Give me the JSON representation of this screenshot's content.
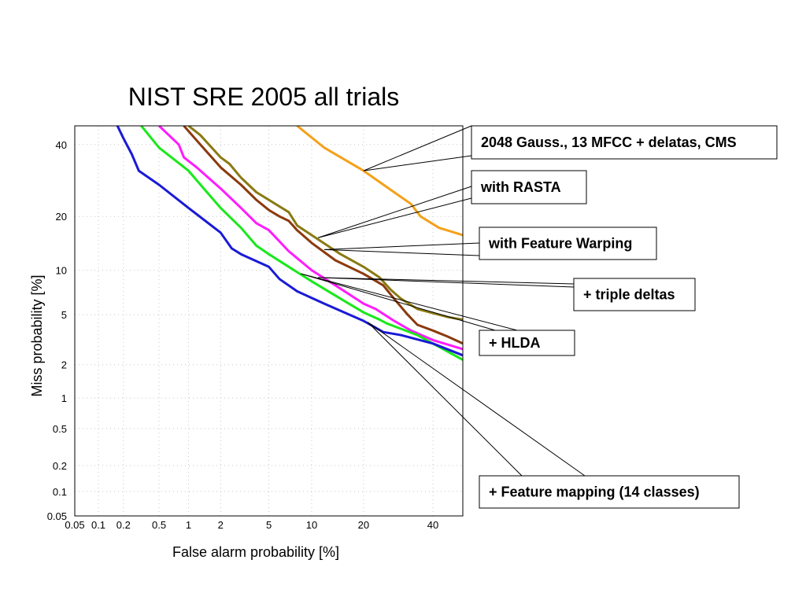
{
  "chart_data": {
    "type": "line",
    "title": "NIST SRE 2005 all trials",
    "xlabel": "False alarm probability [%]",
    "ylabel": "Miss probability [%]",
    "xscale": "probit",
    "yscale": "probit",
    "xlim": [
      0.05,
      50
    ],
    "ylim": [
      0.05,
      46
    ],
    "grid": true,
    "x_ticks": [
      0.05,
      0.1,
      0.2,
      0.5,
      1,
      2,
      5,
      10,
      20,
      40
    ],
    "x_tick_labels": [
      "0.05",
      "0.1",
      "0.2",
      "0.5",
      "1",
      "2",
      "5",
      "10",
      "20",
      "40"
    ],
    "y_ticks": [
      0.05,
      0.1,
      0.2,
      0.5,
      1,
      2,
      5,
      10,
      20,
      40
    ],
    "y_tick_labels": [
      "0.05",
      "0.1",
      "0.2",
      "0.5",
      "1",
      "2",
      "5",
      "10",
      "20",
      "40"
    ],
    "series": [
      {
        "name": "2048 Gauss., 13 MFCC + delatas, CMS",
        "color": "#f5a01a",
        "points": [
          [
            8,
            46
          ],
          [
            12,
            39
          ],
          [
            20,
            32
          ],
          [
            28,
            26
          ],
          [
            33,
            23
          ],
          [
            36,
            20
          ],
          [
            42,
            17.5
          ],
          [
            50,
            16
          ]
        ]
      },
      {
        "name": "with RASTA",
        "color": "#8a7a12",
        "points": [
          [
            1,
            46
          ],
          [
            1.3,
            43
          ],
          [
            2,
            36
          ],
          [
            2.4,
            34
          ],
          [
            3,
            30
          ],
          [
            4,
            26
          ],
          [
            5,
            24
          ],
          [
            7,
            21
          ],
          [
            8,
            18
          ],
          [
            10,
            16
          ],
          [
            15,
            12.5
          ],
          [
            20,
            10.5
          ],
          [
            24,
            9
          ],
          [
            27,
            7.5
          ],
          [
            30,
            6.5
          ],
          [
            35,
            5.5
          ],
          [
            45,
            4.8
          ],
          [
            50,
            4.6
          ]
        ]
      },
      {
        "name": "with Feature Warping",
        "color": "#8b3a0e",
        "points": [
          [
            0.9,
            46
          ],
          [
            1.3,
            40
          ],
          [
            2,
            33
          ],
          [
            3,
            28
          ],
          [
            4,
            24
          ],
          [
            5,
            21.5
          ],
          [
            6,
            20
          ],
          [
            7,
            19
          ],
          [
            8,
            17
          ],
          [
            10,
            14.5
          ],
          [
            14,
            11.5
          ],
          [
            20,
            9.5
          ],
          [
            25,
            8
          ],
          [
            28,
            6.5
          ],
          [
            32,
            5
          ],
          [
            35,
            4.2
          ],
          [
            40,
            3.8
          ],
          [
            45,
            3.4
          ],
          [
            50,
            3
          ]
        ]
      },
      {
        "name": "+ triple deltas",
        "color": "#ff1cff",
        "points": [
          [
            0.5,
            46
          ],
          [
            0.8,
            40
          ],
          [
            0.9,
            36
          ],
          [
            1.2,
            33
          ],
          [
            2,
            27
          ],
          [
            3,
            22
          ],
          [
            4,
            18.5
          ],
          [
            5,
            17
          ],
          [
            7,
            13
          ],
          [
            10,
            10
          ],
          [
            14,
            8
          ],
          [
            20,
            6
          ],
          [
            23,
            5.5
          ],
          [
            28,
            4.5
          ],
          [
            33,
            3.8
          ],
          [
            40,
            3.2
          ],
          [
            50,
            2.7
          ]
        ]
      },
      {
        "name": "+ HLDA",
        "color": "#1ae81a",
        "points": [
          [
            0.32,
            46
          ],
          [
            0.5,
            39
          ],
          [
            1,
            32
          ],
          [
            1.5,
            26
          ],
          [
            2,
            22
          ],
          [
            3,
            17.5
          ],
          [
            4,
            14
          ],
          [
            5,
            12.5
          ],
          [
            7,
            10.5
          ],
          [
            10,
            8.5
          ],
          [
            15,
            6.5
          ],
          [
            20,
            5.2
          ],
          [
            24,
            4.6
          ],
          [
            26,
            4.3
          ],
          [
            35,
            3.5
          ],
          [
            50,
            2.2
          ]
        ]
      },
      {
        "name": "+ Feature mapping (14 classes)",
        "color": "#1a1ad6",
        "points": [
          [
            0.17,
            46
          ],
          [
            0.2,
            42
          ],
          [
            0.25,
            37
          ],
          [
            0.3,
            32
          ],
          [
            0.5,
            28
          ],
          [
            1,
            22
          ],
          [
            2,
            16.5
          ],
          [
            2.5,
            13.5
          ],
          [
            3,
            12.5
          ],
          [
            5,
            10.5
          ],
          [
            6,
            8.8
          ],
          [
            8,
            7.3
          ],
          [
            12,
            6
          ],
          [
            20,
            4.5
          ],
          [
            25,
            3.7
          ],
          [
            30,
            3.5
          ],
          [
            40,
            3
          ],
          [
            50,
            2.4
          ]
        ]
      }
    ],
    "annotations": [
      {
        "label": "2048 Gauss., 13 MFCC + delatas, CMS",
        "series": 0,
        "x": 20,
        "y": 32
      },
      {
        "label": "with RASTA",
        "series": 1,
        "x": 11,
        "y": 15.5
      },
      {
        "label": "with Feature Warping",
        "series": 2,
        "x": 12,
        "y": 13.3
      },
      {
        "label": "+ triple deltas",
        "series": 3,
        "x": 11,
        "y": 9
      },
      {
        "label": "+ HLDA",
        "series": 4,
        "x": 8.5,
        "y": 9.5
      },
      {
        "label": "+ Feature mapping (14 classes)",
        "series": 5,
        "x": 21,
        "y": 4.4
      }
    ]
  }
}
